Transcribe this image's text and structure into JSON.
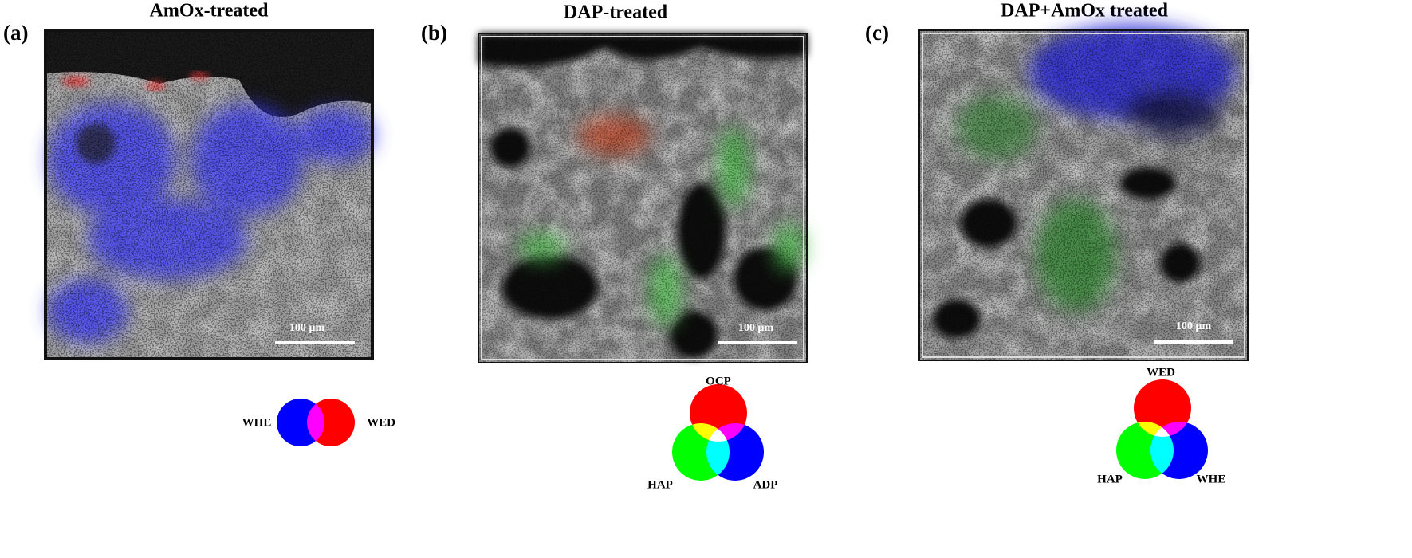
{
  "panels": [
    {
      "label": "(a)",
      "title": "AmOx-treated",
      "scale_bar": "100 µm",
      "legend": [
        "WHE",
        "WED"
      ]
    },
    {
      "label": "(b)",
      "title": "DAP-treated",
      "scale_bar": "100 µm",
      "legend": [
        "OCP",
        "HAP",
        "ADP"
      ]
    },
    {
      "label": "(c)",
      "title": "DAP+AmOx treated",
      "scale_bar": "100 µm",
      "legend": [
        "WED",
        "HAP",
        "WHE"
      ]
    }
  ]
}
